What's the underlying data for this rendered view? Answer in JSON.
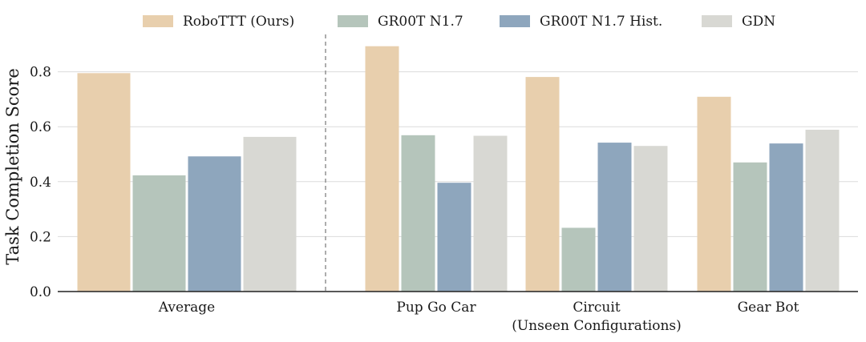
{
  "chart_data": {
    "type": "bar",
    "title": "",
    "xlabel": "",
    "ylabel": "Task Completion Score",
    "ylim": [
      0,
      0.9
    ],
    "yticks": [
      "0.0",
      "0.2",
      "0.4",
      "0.6",
      "0.8"
    ],
    "ytick_values": [
      0.0,
      0.2,
      0.4,
      0.6,
      0.8
    ],
    "grid": "horizontal",
    "legend_position": "top",
    "separator_after_category": "Average",
    "categories": [
      {
        "label": "Average",
        "sublabel": ""
      },
      {
        "label": "Pup Go Car",
        "sublabel": ""
      },
      {
        "label": "Circuit",
        "sublabel": "(Unseen Configurations)"
      },
      {
        "label": "Gear Bot",
        "sublabel": ""
      }
    ],
    "series": [
      {
        "name": "RoboTTT (Ours)",
        "color": "#e8cfad",
        "values": [
          0.795,
          0.893,
          0.781,
          0.709
        ]
      },
      {
        "name": "GR00T N1.7",
        "color": "#b5c5bb",
        "values": [
          0.423,
          0.569,
          0.232,
          0.47
        ]
      },
      {
        "name": "GR00T N1.7 Hist.",
        "color": "#8ea6bd",
        "values": [
          0.492,
          0.396,
          0.542,
          0.539
        ]
      },
      {
        "name": "GDN",
        "color": "#d8d8d3",
        "values": [
          0.563,
          0.567,
          0.53,
          0.589
        ]
      }
    ]
  }
}
